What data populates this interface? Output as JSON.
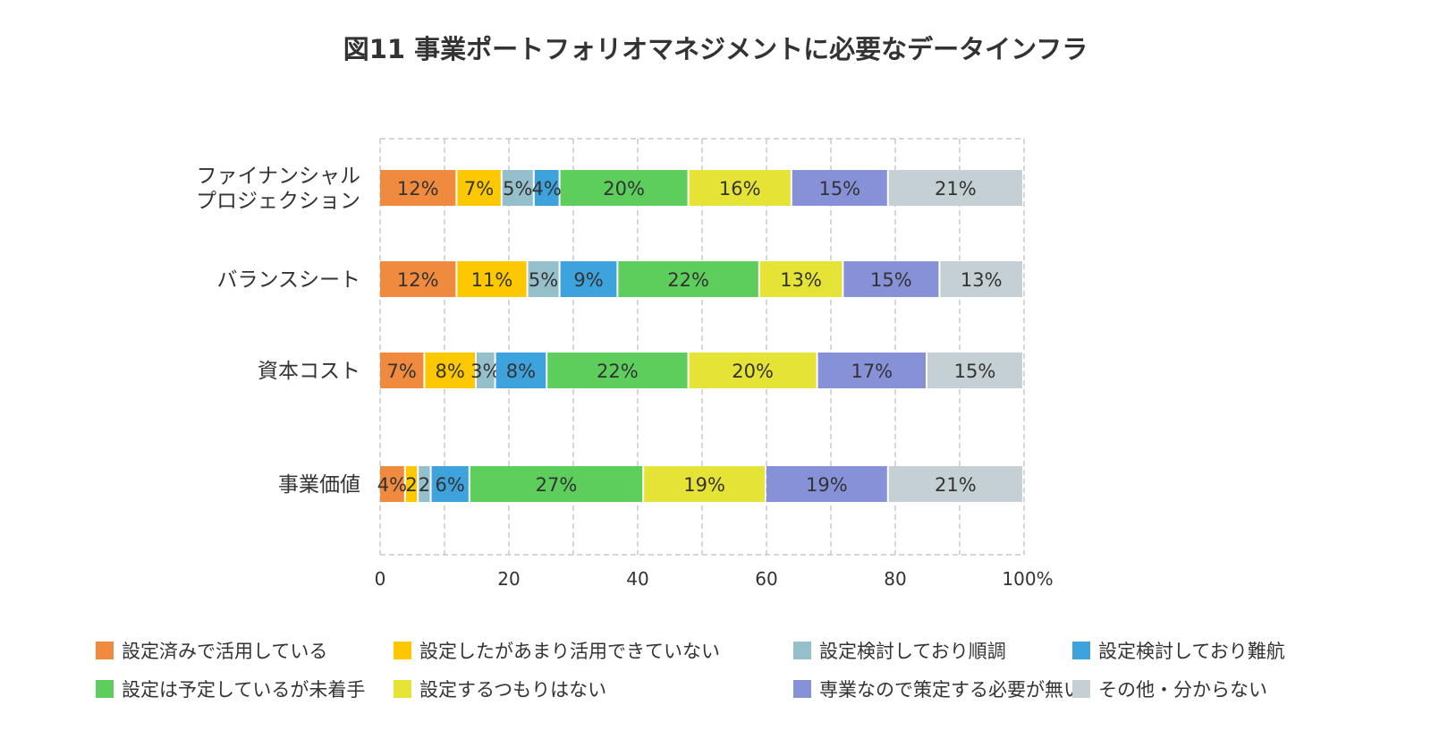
{
  "chart_data": {
    "type": "bar",
    "orientation": "horizontal",
    "stacked": true,
    "title": "図11 事業ポートフォリオマネジメントに必要なデータインフラ",
    "categories": [
      [
        "ファイナンシャル",
        "プロジェクション"
      ],
      [
        "バランスシート"
      ],
      [
        "資本コスト"
      ],
      [
        "事業価値"
      ]
    ],
    "xlim": [
      0,
      100
    ],
    "xticks": [
      "0",
      "20",
      "40",
      "60",
      "80",
      "100%"
    ],
    "grid": true,
    "legend_position": "bottom",
    "series": [
      {
        "name": "設定済みで活用している",
        "color": "#f08a3e",
        "values": [
          12,
          12,
          7,
          4
        ],
        "labels": [
          "12%",
          "12%",
          "7%",
          "4%"
        ]
      },
      {
        "name": "設定したがあまり活用できていない",
        "color": "#fdc800",
        "values": [
          7,
          11,
          8,
          2
        ],
        "labels": [
          "7%",
          "11%",
          "8%",
          "2"
        ]
      },
      {
        "name": "設定検討しており順調",
        "color": "#95c0cb",
        "values": [
          5,
          5,
          3,
          2
        ],
        "labels": [
          "5%",
          "5%",
          "3%",
          "2"
        ]
      },
      {
        "name": "設定検討しており難航",
        "color": "#3ea3dc",
        "values": [
          4,
          9,
          8,
          6
        ],
        "labels": [
          "4%",
          "9%",
          "8%",
          "6%"
        ]
      },
      {
        "name": "設定は予定しているが未着手",
        "color": "#5dcd5c",
        "values": [
          20,
          22,
          22,
          27
        ],
        "labels": [
          "20%",
          "22%",
          "22%",
          "27%"
        ]
      },
      {
        "name": "設定するつもりはない",
        "color": "#e6e337",
        "values": [
          16,
          13,
          20,
          19
        ],
        "labels": [
          "16%",
          "13%",
          "20%",
          "19%"
        ]
      },
      {
        "name": "専業なので策定する必要が無い",
        "color": "#8791d8",
        "values": [
          15,
          15,
          17,
          19
        ],
        "labels": [
          "15%",
          "15%",
          "17%",
          "19%"
        ]
      },
      {
        "name": "その他・分からない",
        "color": "#c5d0d4",
        "values": [
          21,
          13,
          15,
          21
        ],
        "labels": [
          "21%",
          "13%",
          "15%",
          "21%"
        ]
      }
    ]
  }
}
